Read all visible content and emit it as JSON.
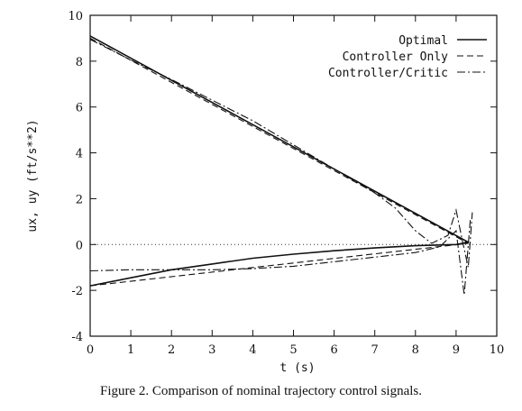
{
  "chart_data": {
    "type": "line",
    "xlabel": "t (s)",
    "ylabel": "ux, uy (ft/s**2)",
    "xlim": [
      0,
      10
    ],
    "ylim": [
      -4,
      10
    ],
    "xticks": [
      0,
      1,
      2,
      3,
      4,
      5,
      6,
      7,
      8,
      9,
      10
    ],
    "yticks": [
      -4,
      -2,
      0,
      2,
      4,
      6,
      8,
      10
    ],
    "legend_position": "top-right",
    "reference_line": {
      "y": 0,
      "style": "dotted"
    },
    "series": [
      {
        "name": "Optimal",
        "style": "solid",
        "x": [
          0,
          9.3
        ],
        "y": [
          9.1,
          0.1
        ]
      },
      {
        "name": "Optimal",
        "style": "solid",
        "x": [
          0,
          1,
          2,
          3,
          4,
          5,
          6,
          7,
          8,
          9,
          9.3
        ],
        "y": [
          -1.8,
          -1.45,
          -1.1,
          -0.85,
          -0.6,
          -0.42,
          -0.27,
          -0.15,
          -0.05,
          0.0,
          0.1
        ]
      },
      {
        "name": "Controller Only",
        "style": "dashed",
        "x": [
          0,
          9.3
        ],
        "y": [
          9.0,
          0.05
        ]
      },
      {
        "name": "Controller Only",
        "style": "dashed",
        "x": [
          0,
          9.3
        ],
        "y": [
          -1.8,
          0.05
        ]
      },
      {
        "name": "Controller/Critic",
        "style": "dashdot",
        "x": [
          0,
          1,
          2,
          3,
          4,
          5,
          6,
          7,
          7.5,
          8.0,
          8.4,
          8.8,
          9.0,
          9.15,
          9.3,
          9.4
        ],
        "y": [
          8.95,
          8.05,
          7.2,
          6.3,
          5.4,
          4.35,
          3.3,
          2.25,
          1.6,
          0.6,
          0.05,
          0.4,
          1.5,
          0.2,
          -1.0,
          1.4
        ]
      },
      {
        "name": "Controller/Critic",
        "style": "dashdot",
        "x": [
          0,
          1,
          2,
          3,
          4,
          5,
          6,
          7,
          8,
          8.6,
          9.0,
          9.2,
          9.35
        ],
        "y": [
          -1.15,
          -1.1,
          -1.1,
          -1.1,
          -1.05,
          -0.95,
          -0.75,
          -0.55,
          -0.35,
          -0.1,
          0.6,
          -2.2,
          1.1
        ]
      }
    ],
    "legend": [
      "Optimal",
      "Controller Only",
      "Controller/Critic"
    ],
    "caption": "Figure 2. Comparison of nominal trajectory control signals."
  }
}
